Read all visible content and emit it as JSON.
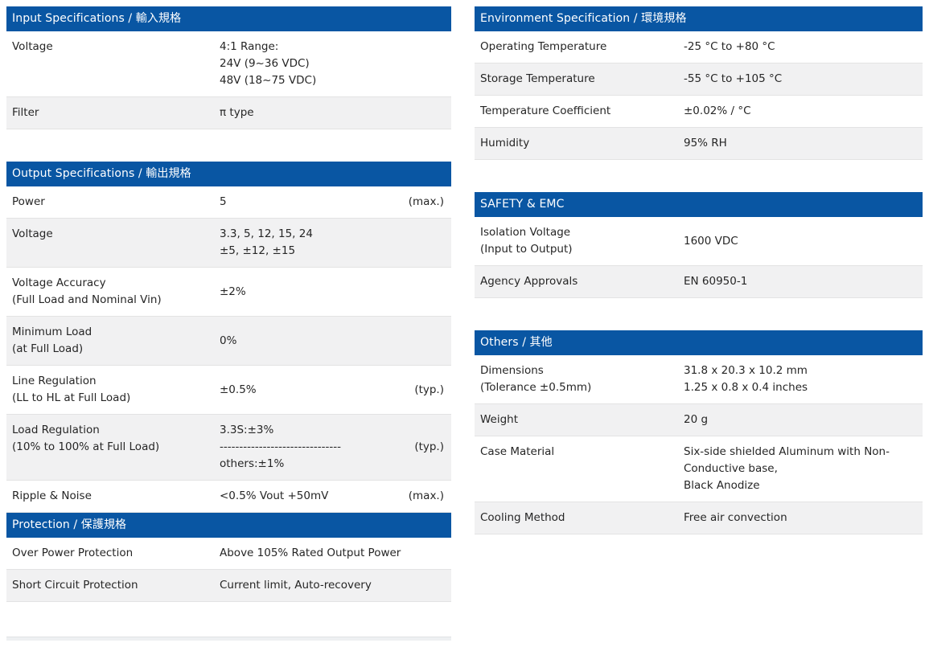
{
  "colors": {
    "header_bg": "#0956a3",
    "header_text": "#ffffff",
    "row_alt_bg": "#f1f1f2",
    "body_text": "#262626"
  },
  "left_column": {
    "sections": [
      {
        "title": "Input Specifications / 輸入規格",
        "rows": [
          {
            "label": [
              "Voltage"
            ],
            "value": [
              "4:1 Range:",
              "24V (9~36 VDC)",
              "48V (18~75 VDC)"
            ],
            "note": ""
          },
          {
            "label": [
              "Filter"
            ],
            "value": [
              "π type"
            ],
            "note": ""
          }
        ]
      },
      {
        "title": "Output Specifications / 輸出規格",
        "rows": [
          {
            "label": [
              "Power"
            ],
            "value": [
              "5"
            ],
            "note": "(max.)"
          },
          {
            "label": [
              "Voltage"
            ],
            "value": [
              "3.3, 5, 12, 15, 24",
              "±5, ±12, ±15"
            ],
            "note": ""
          },
          {
            "label": [
              "Voltage Accuracy",
              "(Full Load and Nominal Vin)"
            ],
            "value": [
              "±2%"
            ],
            "note": ""
          },
          {
            "label": [
              "Minimum Load",
              "(at Full Load)"
            ],
            "value": [
              "0%"
            ],
            "note": ""
          },
          {
            "label": [
              "Line Regulation",
              "(LL to HL at Full Load)"
            ],
            "value": [
              "±0.5%"
            ],
            "note": "(typ.)"
          },
          {
            "label": [
              "Load Regulation",
              "(10% to 100% at Full Load)"
            ],
            "value": [
              "3.3S:±3%",
              "-------------------------------",
              "others:±1%"
            ],
            "note": "(typ.)"
          },
          {
            "label": [
              "Ripple & Noise"
            ],
            "value": [
              "<0.5% Vout +50mV"
            ],
            "note": "(max.)"
          }
        ]
      },
      {
        "title": "Protection / 保護規格",
        "rows": [
          {
            "label": [
              "Over Power Protection"
            ],
            "value": [
              "Above 105% Rated Output Power"
            ],
            "note": ""
          },
          {
            "label": [
              "Short Circuit Protection"
            ],
            "value": [
              "Current limit, Auto-recovery"
            ],
            "note": ""
          }
        ]
      }
    ]
  },
  "right_column": {
    "sections": [
      {
        "title": "Environment Specification / 環境規格",
        "rows": [
          {
            "label": [
              "Operating Temperature"
            ],
            "value": [
              "-25 °C to +80 °C"
            ],
            "note": ""
          },
          {
            "label": [
              "Storage Temperature"
            ],
            "value": [
              "-55 °C to +105 °C"
            ],
            "note": ""
          },
          {
            "label": [
              "Temperature Coefficient"
            ],
            "value": [
              "±0.02% / °C"
            ],
            "note": ""
          },
          {
            "label": [
              "Humidity"
            ],
            "value": [
              "95% RH"
            ],
            "note": ""
          }
        ]
      },
      {
        "title": "SAFETY & EMC",
        "rows": [
          {
            "label": [
              "Isolation Voltage",
              "(Input to Output)"
            ],
            "value": [
              "1600 VDC"
            ],
            "note": ""
          },
          {
            "label": [
              "Agency Approvals"
            ],
            "value": [
              "EN 60950-1"
            ],
            "note": ""
          }
        ]
      },
      {
        "title": "Others / 其他",
        "rows": [
          {
            "label": [
              "Dimensions",
              "(Tolerance ±0.5mm)"
            ],
            "value": [
              "31.8 x 20.3 x 10.2 mm",
              "1.25 x 0.8 x 0.4 inches"
            ],
            "note": ""
          },
          {
            "label": [
              "Weight"
            ],
            "value": [
              "20 g"
            ],
            "note": ""
          },
          {
            "label": [
              "Case Material"
            ],
            "value": [
              "Six-side shielded Aluminum with Non-",
              "Conductive base,",
              "Black Anodize"
            ],
            "note": ""
          },
          {
            "label": [
              "Cooling Method"
            ],
            "value": [
              "Free air convection"
            ],
            "note": ""
          }
        ]
      }
    ]
  }
}
